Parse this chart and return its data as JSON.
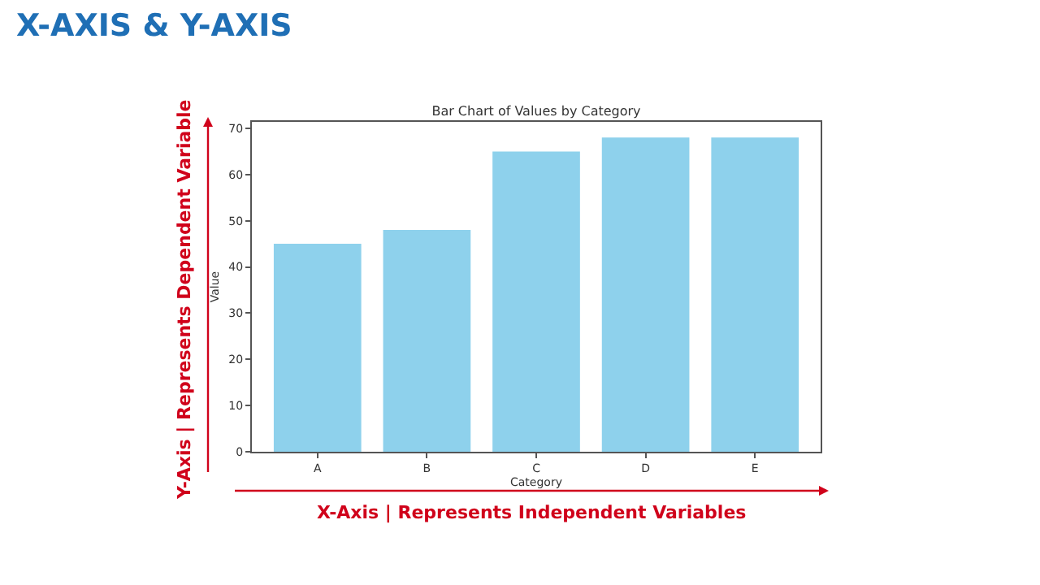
{
  "chart_data": {
    "type": "bar",
    "title": "Bar Chart of Values by Category",
    "xlabel": "Category",
    "ylabel": "Value",
    "categories": [
      "A",
      "B",
      "C",
      "D",
      "E"
    ],
    "values": [
      45,
      48,
      65,
      68,
      68
    ],
    "color": "#8ed1ec",
    "ylim": [
      0,
      71.4
    ],
    "yticks": [
      0,
      10,
      20,
      30,
      40,
      50,
      60,
      70
    ],
    "annotations": [
      "X-AXIS & Y-AXIS",
      "Y-Axis | Represents Dependent Variable",
      "X-Axis | Represents Independent Variables"
    ]
  }
}
